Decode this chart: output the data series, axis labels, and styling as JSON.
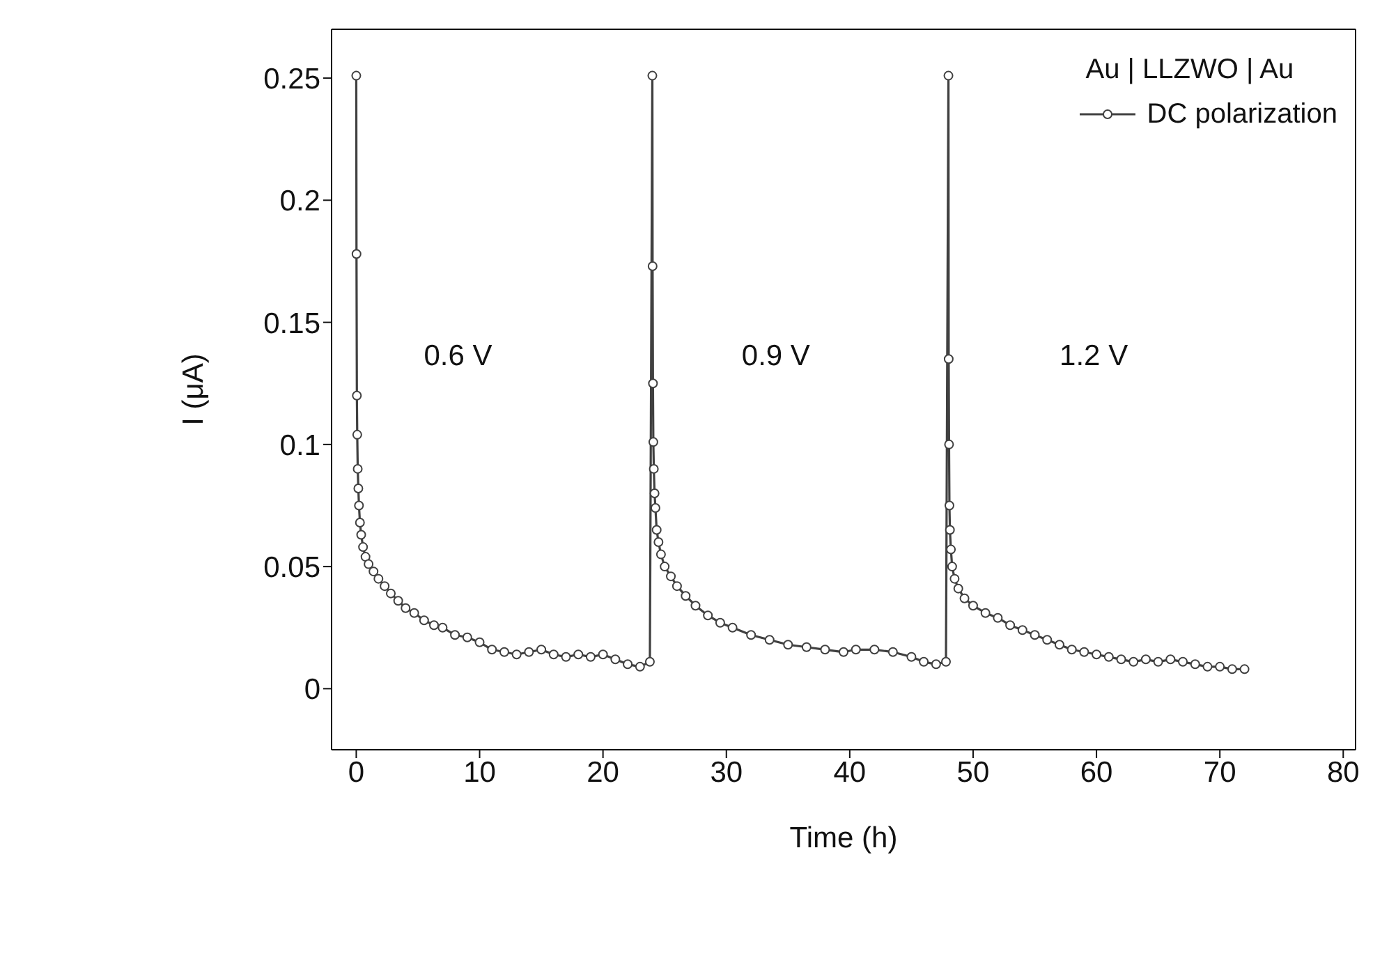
{
  "chart_data": {
    "type": "line",
    "xlabel": "Time (h)",
    "ylabel": "I (μA)",
    "legend_title": "Au | LLZWO | Au",
    "legend": "top right",
    "marker": "circle",
    "line_style": "solid",
    "xlim": [
      -2,
      81
    ],
    "xticks": [
      0,
      10,
      20,
      30,
      40,
      50,
      60,
      70,
      80
    ],
    "ylim": [
      -0.025,
      0.27
    ],
    "yticks": [
      0,
      0.05,
      0.1,
      0.15,
      0.2,
      0.25
    ],
    "annotations": [
      "0.6 V",
      "0.9 V",
      "1.2 V"
    ],
    "x": [
      0,
      0.02,
      0.05,
      0.08,
      0.12,
      0.17,
      0.22,
      0.3,
      0.4,
      0.55,
      0.75,
      1,
      1.4,
      1.8,
      2.3,
      2.8,
      3.4,
      4,
      4.7,
      5.5,
      6.3,
      7,
      8,
      9,
      10,
      11,
      12,
      13,
      14,
      15,
      16,
      17,
      18,
      19,
      20,
      21,
      22,
      23,
      23.8,
      24,
      24.02,
      24.05,
      24.08,
      24.12,
      24.18,
      24.25,
      24.35,
      24.5,
      24.7,
      25,
      25.5,
      26,
      26.7,
      27.5,
      28.5,
      29.5,
      30.5,
      32,
      33.5,
      35,
      36.5,
      38,
      39.5,
      40.5,
      42,
      43.5,
      45,
      46,
      47,
      47.8,
      48,
      48.02,
      48.05,
      48.08,
      48.12,
      48.2,
      48.3,
      48.5,
      48.8,
      49.3,
      50,
      51,
      52,
      53,
      54,
      55,
      56,
      57,
      58,
      59,
      60,
      61,
      62,
      63,
      64,
      65,
      66,
      67,
      68,
      69,
      70,
      71,
      72
    ],
    "series": [
      {
        "name": "DC polarization",
        "color": "#404040",
        "values": [
          0.251,
          0.178,
          0.12,
          0.104,
          0.09,
          0.082,
          0.075,
          0.068,
          0.063,
          0.058,
          0.054,
          0.051,
          0.048,
          0.045,
          0.042,
          0.039,
          0.036,
          0.033,
          0.031,
          0.028,
          0.026,
          0.025,
          0.022,
          0.021,
          0.019,
          0.016,
          0.015,
          0.014,
          0.015,
          0.016,
          0.014,
          0.013,
          0.014,
          0.013,
          0.014,
          0.012,
          0.01,
          0.009,
          0.011,
          0.251,
          0.173,
          0.125,
          0.101,
          0.09,
          0.08,
          0.074,
          0.065,
          0.06,
          0.055,
          0.05,
          0.046,
          0.042,
          0.038,
          0.034,
          0.03,
          0.027,
          0.025,
          0.022,
          0.02,
          0.018,
          0.017,
          0.016,
          0.015,
          0.016,
          0.016,
          0.015,
          0.013,
          0.011,
          0.01,
          0.011,
          0.251,
          0.135,
          0.1,
          0.075,
          0.065,
          0.057,
          0.05,
          0.045,
          0.041,
          0.037,
          0.034,
          0.031,
          0.029,
          0.026,
          0.024,
          0.022,
          0.02,
          0.018,
          0.016,
          0.015,
          0.014,
          0.013,
          0.012,
          0.011,
          0.012,
          0.011,
          0.012,
          0.011,
          0.01,
          0.009,
          0.009,
          0.008,
          0.008
        ]
      }
    ]
  }
}
